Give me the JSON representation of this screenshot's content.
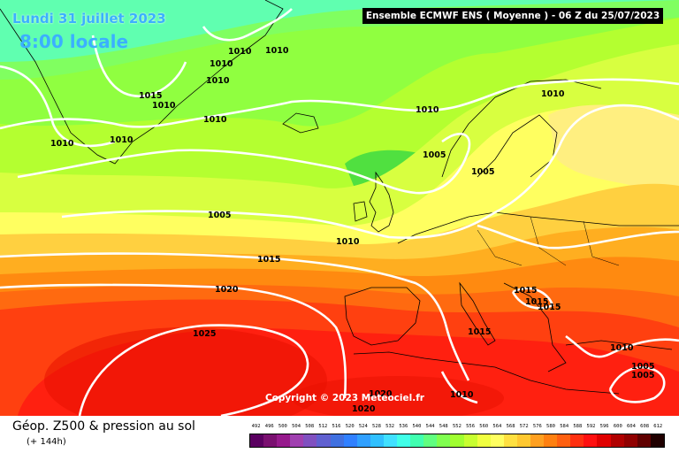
{
  "header": {
    "date": "Lundi 31 juillet 2023",
    "time": "8:00 locale",
    "model": "Ensemble ECMWF ENS  ( Moyenne )  -  06 Z du 25/07/2023"
  },
  "copyright": "Copyright © 2023 Meteociel.fr",
  "footer": {
    "title": "Géop. Z500 & pression au sol",
    "subtitle": "(+ 144h)"
  },
  "scale": {
    "labels": [
      "492",
      "496",
      "500",
      "504",
      "508",
      "512",
      "516",
      "520",
      "524",
      "528",
      "532",
      "536",
      "540",
      "544",
      "548",
      "552",
      "556",
      "560",
      "564",
      "568",
      "572",
      "576",
      "580",
      "584",
      "588",
      "592",
      "596",
      "600",
      "604",
      "608",
      "612"
    ],
    "colors": [
      "#5a0060",
      "#7a1070",
      "#961a8c",
      "#a040b0",
      "#8050c0",
      "#6060d0",
      "#4070e0",
      "#3080ff",
      "#30a0ff",
      "#30c0ff",
      "#40e0ff",
      "#40ffe8",
      "#40ffb0",
      "#60ff80",
      "#80ff50",
      "#a0ff30",
      "#c8ff30",
      "#f0ff40",
      "#ffff60",
      "#ffe040",
      "#ffc830",
      "#ffa020",
      "#ff8010",
      "#ff6010",
      "#ff3010",
      "#ff1010",
      "#e00000",
      "#b00000",
      "#900000",
      "#600000",
      "#200000"
    ]
  },
  "isobars": [
    {
      "text": "1010"
    },
    {
      "text": "1010"
    },
    {
      "text": "1010"
    },
    {
      "text": "1010"
    },
    {
      "text": "1015"
    },
    {
      "text": "1010"
    },
    {
      "text": "1010"
    },
    {
      "text": "1010"
    },
    {
      "text": "1010"
    },
    {
      "text": "1010"
    },
    {
      "text": "1010"
    },
    {
      "text": "1005"
    },
    {
      "text": "1005"
    },
    {
      "text": "1005"
    },
    {
      "text": "1010"
    },
    {
      "text": "1015"
    },
    {
      "text": "1020"
    },
    {
      "text": "1025"
    },
    {
      "text": "1015"
    },
    {
      "text": "1015"
    },
    {
      "text": "1015"
    },
    {
      "text": "1015"
    },
    {
      "text": "1010"
    },
    {
      "text": "1005"
    },
    {
      "text": "1005"
    },
    {
      "text": "1010"
    },
    {
      "text": "1020"
    },
    {
      "text": "1020"
    }
  ]
}
